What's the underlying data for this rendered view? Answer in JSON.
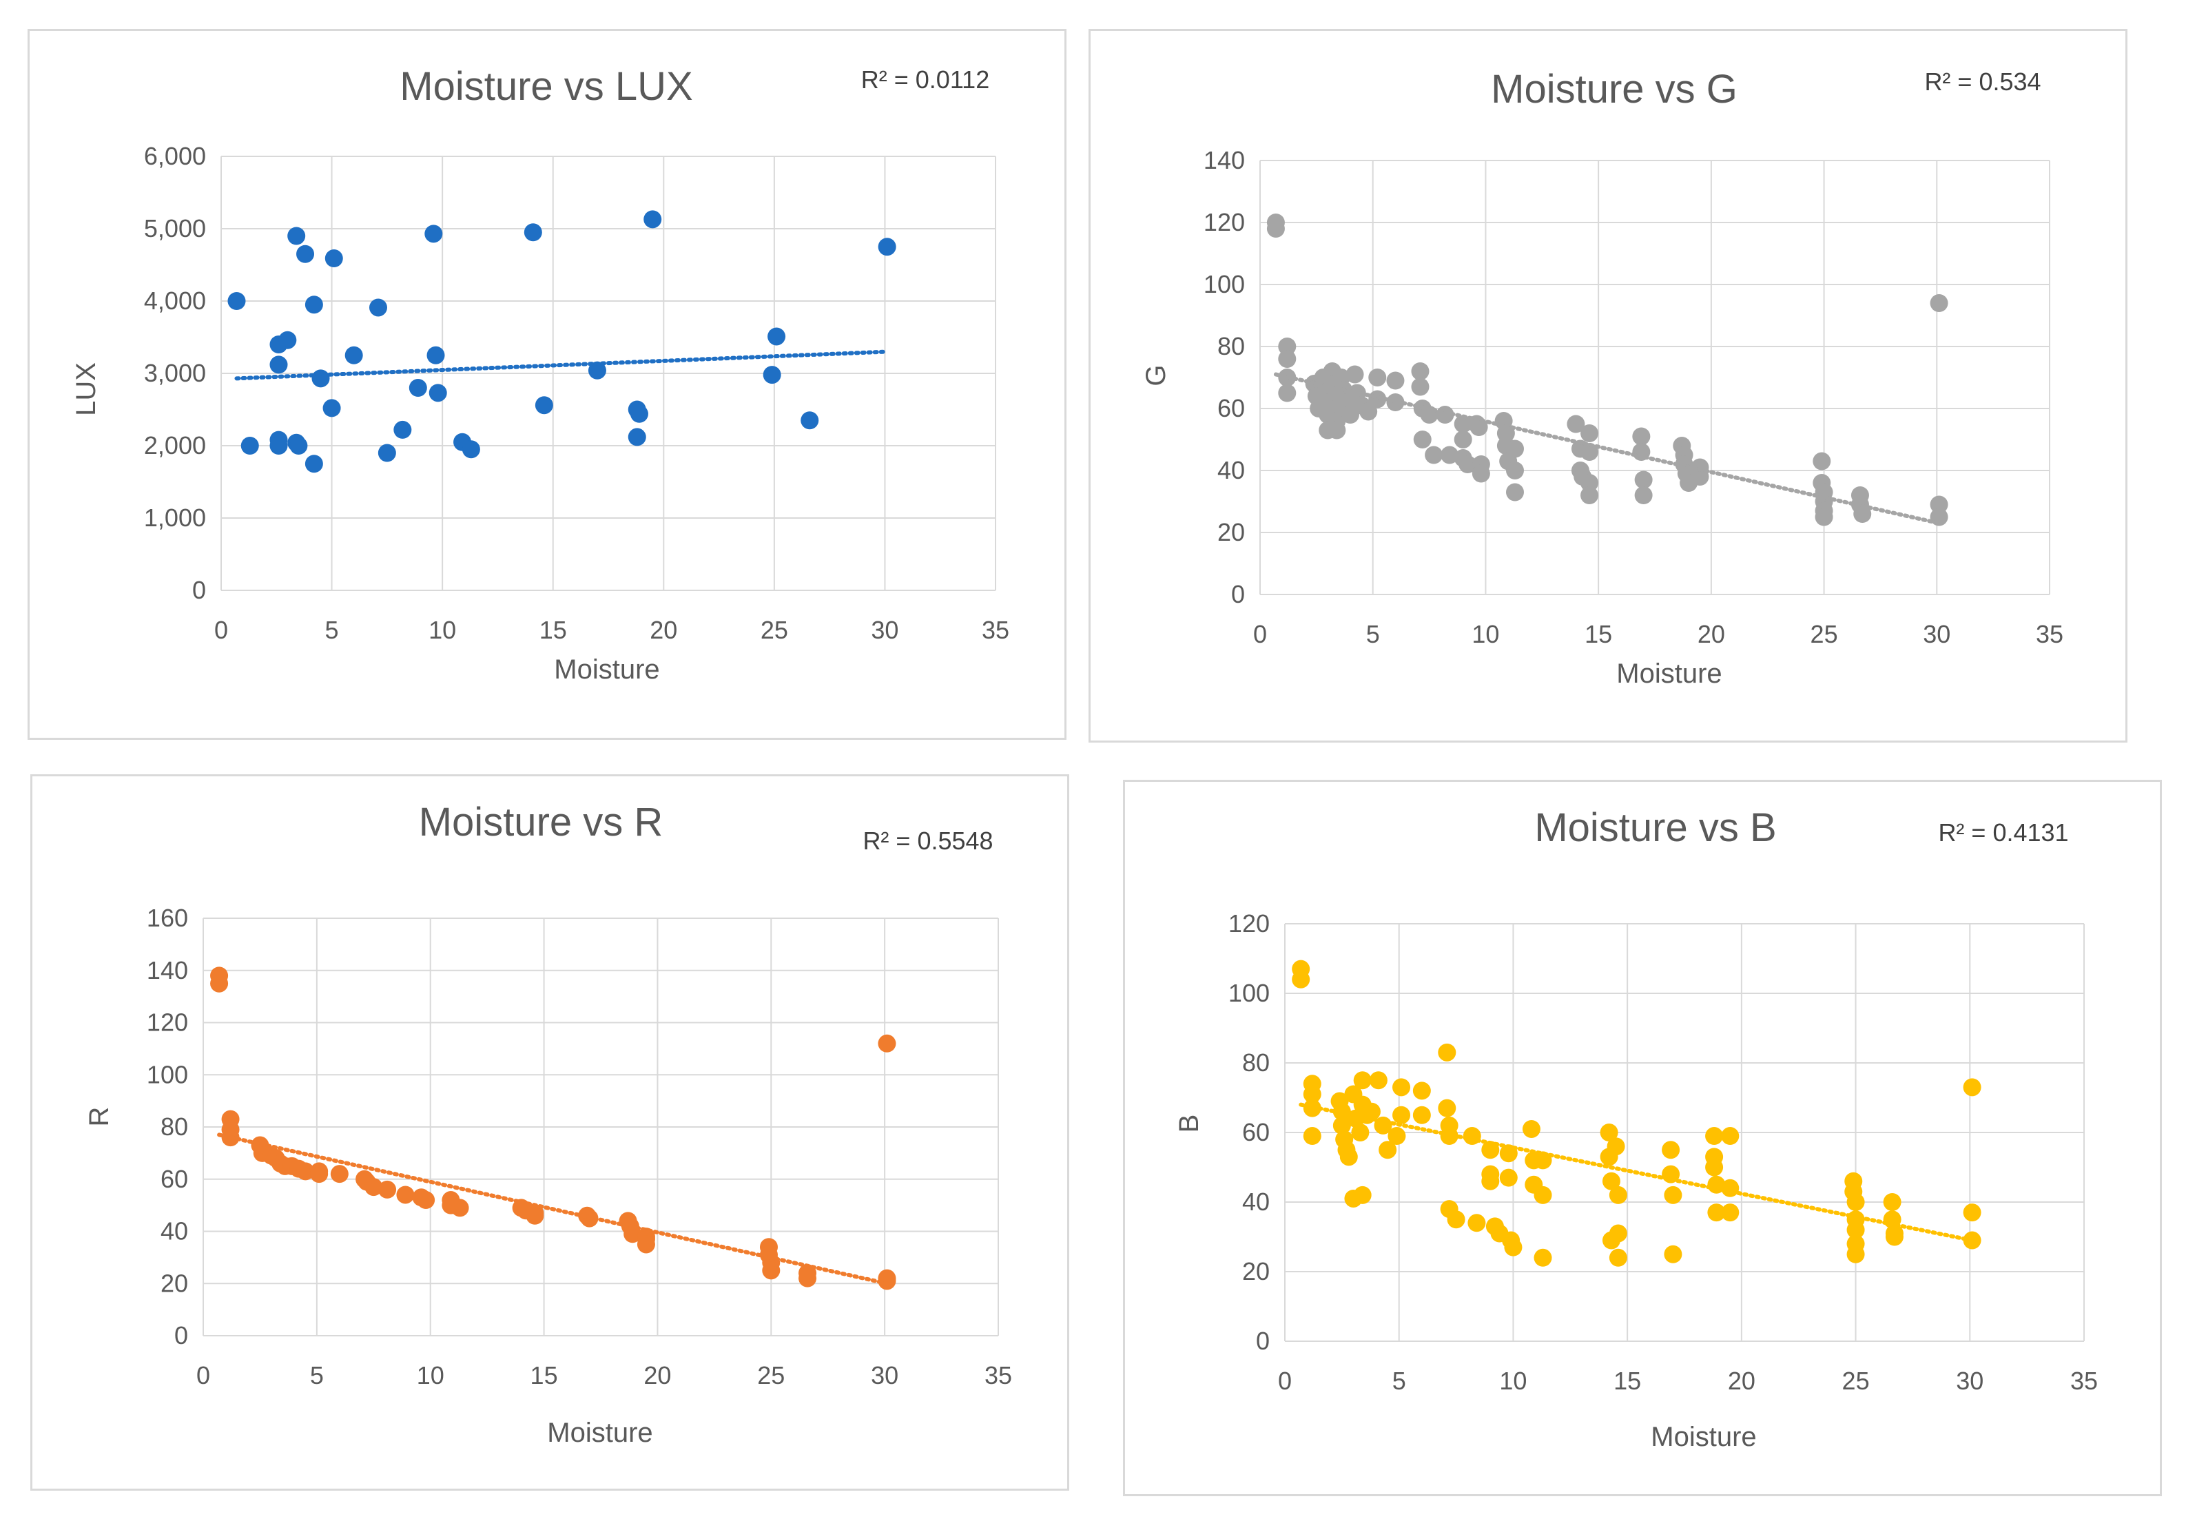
{
  "charts": [
    {
      "id": "lux",
      "type": "scatter",
      "title": "Moisture vs LUX",
      "r2": "R² = 0.0112",
      "xlabel": "Moisture",
      "ylabel": "LUX",
      "xlim": [
        0,
        35
      ],
      "ylim": [
        0,
        6000
      ],
      "xticks": [
        0,
        5,
        10,
        15,
        20,
        25,
        30,
        35
      ],
      "yticks": [
        0,
        1000,
        2000,
        3000,
        4000,
        5000,
        6000
      ],
      "ytick_labels": [
        "0",
        "1,000",
        "2,000",
        "3,000",
        "4,000",
        "5,000",
        "6,000"
      ],
      "color": "#1f6fc4",
      "trend": [
        [
          0.7,
          2930
        ],
        [
          30.1,
          3300
        ]
      ],
      "points": [
        [
          0.7,
          4000
        ],
        [
          1.3,
          2000
        ],
        [
          2.6,
          3400
        ],
        [
          2.6,
          3120
        ],
        [
          2.6,
          2080
        ],
        [
          2.6,
          2000
        ],
        [
          3,
          3460
        ],
        [
          3.4,
          4900
        ],
        [
          3.4,
          2040
        ],
        [
          3.5,
          2000
        ],
        [
          3.8,
          4650
        ],
        [
          4.2,
          3950
        ],
        [
          4.2,
          1750
        ],
        [
          4.5,
          2930
        ],
        [
          5,
          2520
        ],
        [
          5.1,
          4590
        ],
        [
          6,
          3250
        ],
        [
          7.1,
          3910
        ],
        [
          7.5,
          1900
        ],
        [
          8.2,
          2220
        ],
        [
          8.9,
          2800
        ],
        [
          9.6,
          4930
        ],
        [
          9.7,
          3250
        ],
        [
          9.8,
          2730
        ],
        [
          10.9,
          2050
        ],
        [
          11.3,
          1950
        ],
        [
          14.1,
          4950
        ],
        [
          14.6,
          2560
        ],
        [
          17,
          3040
        ],
        [
          18.8,
          2500
        ],
        [
          18.9,
          2440
        ],
        [
          18.8,
          2120
        ],
        [
          19.5,
          5130
        ],
        [
          24.9,
          2980
        ],
        [
          25.1,
          3510
        ],
        [
          26.6,
          2350
        ],
        [
          30.1,
          4750
        ]
      ]
    },
    {
      "id": "g",
      "type": "scatter",
      "title": "Moisture vs G",
      "r2": "R² = 0.534",
      "xlabel": "Moisture",
      "ylabel": "G",
      "xlim": [
        0,
        35
      ],
      "ylim": [
        0,
        140
      ],
      "xticks": [
        0,
        5,
        10,
        15,
        20,
        25,
        30,
        35
      ],
      "yticks": [
        0,
        20,
        40,
        60,
        80,
        100,
        120,
        140
      ],
      "ytick_labels": [
        "0",
        "20",
        "40",
        "60",
        "80",
        "100",
        "120",
        "140"
      ],
      "color": "#a5a5a5",
      "trend": [
        [
          0.7,
          71
        ],
        [
          30.1,
          23
        ]
      ],
      "points": [
        [
          0.7,
          120
        ],
        [
          0.7,
          118
        ],
        [
          1.2,
          80
        ],
        [
          1.2,
          76
        ],
        [
          1.2,
          70
        ],
        [
          1.2,
          65
        ],
        [
          2.4,
          68
        ],
        [
          2.5,
          64
        ],
        [
          2.6,
          60
        ],
        [
          2.8,
          70
        ],
        [
          3,
          66
        ],
        [
          3,
          62
        ],
        [
          3,
          58
        ],
        [
          3,
          53
        ],
        [
          3.2,
          72
        ],
        [
          3.3,
          68
        ],
        [
          3.4,
          64
        ],
        [
          3.4,
          60
        ],
        [
          3.4,
          56
        ],
        [
          3.4,
          53
        ],
        [
          3.6,
          70
        ],
        [
          3.7,
          66
        ],
        [
          3.8,
          62
        ],
        [
          4,
          58
        ],
        [
          4.2,
          71
        ],
        [
          4.3,
          65
        ],
        [
          4.5,
          61
        ],
        [
          4.8,
          59
        ],
        [
          5.2,
          70
        ],
        [
          5.2,
          63
        ],
        [
          6,
          69
        ],
        [
          6,
          62
        ],
        [
          7.1,
          72
        ],
        [
          7.1,
          67
        ],
        [
          7.2,
          60
        ],
        [
          7.2,
          50
        ],
        [
          7.5,
          58
        ],
        [
          7.7,
          45
        ],
        [
          8.2,
          58
        ],
        [
          8.4,
          45
        ],
        [
          9,
          55
        ],
        [
          9,
          50
        ],
        [
          9,
          44
        ],
        [
          9.2,
          42
        ],
        [
          9.6,
          55
        ],
        [
          9.7,
          54
        ],
        [
          9.8,
          42
        ],
        [
          9.8,
          39
        ],
        [
          10.8,
          56
        ],
        [
          10.9,
          52
        ],
        [
          10.9,
          48
        ],
        [
          11,
          43
        ],
        [
          11.3,
          47
        ],
        [
          11.3,
          40
        ],
        [
          11.3,
          33
        ],
        [
          14,
          55
        ],
        [
          14.2,
          47
        ],
        [
          14.2,
          40
        ],
        [
          14.3,
          38
        ],
        [
          14.6,
          52
        ],
        [
          14.6,
          46
        ],
        [
          14.6,
          36
        ],
        [
          14.6,
          32
        ],
        [
          16.9,
          51
        ],
        [
          16.9,
          46
        ],
        [
          17,
          37
        ],
        [
          17,
          32
        ],
        [
          18.7,
          48
        ],
        [
          18.8,
          45
        ],
        [
          18.8,
          42
        ],
        [
          18.9,
          39
        ],
        [
          19,
          36
        ],
        [
          19.5,
          41
        ],
        [
          19.5,
          38
        ],
        [
          24.9,
          43
        ],
        [
          24.9,
          36
        ],
        [
          25,
          33
        ],
        [
          25,
          30
        ],
        [
          25,
          27
        ],
        [
          25,
          25
        ],
        [
          26.6,
          32
        ],
        [
          26.6,
          29
        ],
        [
          26.7,
          26
        ],
        [
          30.1,
          94
        ],
        [
          30.1,
          29
        ],
        [
          30.1,
          25
        ]
      ]
    },
    {
      "id": "r",
      "type": "scatter",
      "title": "Moisture vs R",
      "r2": "R² = 0.5548",
      "xlabel": "Moisture",
      "ylabel": "R",
      "xlim": [
        0,
        35
      ],
      "ylim": [
        0,
        160
      ],
      "xticks": [
        0,
        5,
        10,
        15,
        20,
        25,
        30,
        35
      ],
      "yticks": [
        0,
        20,
        40,
        60,
        80,
        100,
        120,
        140,
        160
      ],
      "ytick_labels": [
        "0",
        "20",
        "40",
        "60",
        "80",
        "100",
        "120",
        "140",
        "160"
      ],
      "color": "#f07c2d",
      "trend": [
        [
          0.7,
          77
        ],
        [
          30.1,
          20
        ]
      ],
      "points": [
        [
          0.7,
          138
        ],
        [
          0.7,
          135
        ],
        [
          1.2,
          83
        ],
        [
          1.2,
          79
        ],
        [
          1.2,
          76
        ],
        [
          2.5,
          73
        ],
        [
          2.6,
          70
        ],
        [
          3,
          69
        ],
        [
          3.2,
          68
        ],
        [
          3.4,
          66
        ],
        [
          3.6,
          65
        ],
        [
          3.9,
          65
        ],
        [
          4.2,
          64
        ],
        [
          4.5,
          63
        ],
        [
          5.1,
          63
        ],
        [
          5.1,
          62
        ],
        [
          6,
          62
        ],
        [
          7.1,
          60
        ],
        [
          7.2,
          59
        ],
        [
          7.5,
          57
        ],
        [
          8.1,
          56
        ],
        [
          8.9,
          54
        ],
        [
          9.6,
          53
        ],
        [
          9.8,
          52
        ],
        [
          10.9,
          50
        ],
        [
          10.9,
          52
        ],
        [
          11.3,
          49
        ],
        [
          14,
          49
        ],
        [
          14.2,
          48
        ],
        [
          14.6,
          47
        ],
        [
          14.6,
          46
        ],
        [
          16.9,
          46
        ],
        [
          17,
          45
        ],
        [
          18.7,
          44
        ],
        [
          18.8,
          42
        ],
        [
          18.9,
          39
        ],
        [
          19.5,
          38
        ],
        [
          19.5,
          37
        ],
        [
          19.5,
          35
        ],
        [
          24.9,
          34
        ],
        [
          24.9,
          31
        ],
        [
          25,
          28
        ],
        [
          25,
          25
        ],
        [
          26.6,
          24
        ],
        [
          26.6,
          22
        ],
        [
          30.1,
          112
        ],
        [
          30.1,
          22
        ],
        [
          30.1,
          21
        ]
      ]
    },
    {
      "id": "b",
      "type": "scatter",
      "title": "Moisture vs B",
      "r2": "R² = 0.4131",
      "xlabel": "Moisture",
      "ylabel": "B",
      "xlim": [
        0,
        35
      ],
      "ylim": [
        0,
        120
      ],
      "xticks": [
        0,
        5,
        10,
        15,
        20,
        25,
        30,
        35
      ],
      "yticks": [
        0,
        20,
        40,
        60,
        80,
        100,
        120
      ],
      "ytick_labels": [
        "0",
        "20",
        "40",
        "60",
        "80",
        "100",
        "120"
      ],
      "color": "#ffc000",
      "trend": [
        [
          0.7,
          68
        ],
        [
          30.1,
          29
        ]
      ],
      "points": [
        [
          0.7,
          107
        ],
        [
          0.7,
          104
        ],
        [
          1.2,
          74
        ],
        [
          1.2,
          71
        ],
        [
          1.2,
          67
        ],
        [
          1.2,
          59
        ],
        [
          2.4,
          69
        ],
        [
          2.5,
          66
        ],
        [
          2.5,
          62
        ],
        [
          2.6,
          58
        ],
        [
          2.7,
          55
        ],
        [
          2.8,
          53
        ],
        [
          3,
          41
        ],
        [
          3,
          71
        ],
        [
          3.1,
          64
        ],
        [
          3.3,
          60
        ],
        [
          3.4,
          42
        ],
        [
          3.4,
          75
        ],
        [
          3.4,
          68
        ],
        [
          3.6,
          65
        ],
        [
          3.8,
          66
        ],
        [
          4.1,
          75
        ],
        [
          4.3,
          62
        ],
        [
          4.5,
          55
        ],
        [
          4.9,
          59
        ],
        [
          5.1,
          73
        ],
        [
          5.1,
          65
        ],
        [
          6,
          72
        ],
        [
          6,
          65
        ],
        [
          7.1,
          83
        ],
        [
          7.1,
          67
        ],
        [
          7.2,
          62
        ],
        [
          7.2,
          59
        ],
        [
          7.2,
          38
        ],
        [
          7.5,
          35
        ],
        [
          8.2,
          59
        ],
        [
          8.4,
          34
        ],
        [
          9,
          55
        ],
        [
          9,
          48
        ],
        [
          9,
          46
        ],
        [
          9.2,
          33
        ],
        [
          9.4,
          31
        ],
        [
          9.8,
          54
        ],
        [
          9.8,
          47
        ],
        [
          9.9,
          29
        ],
        [
          10,
          27
        ],
        [
          10.8,
          61
        ],
        [
          10.9,
          52
        ],
        [
          10.9,
          45
        ],
        [
          11.3,
          52
        ],
        [
          11.3,
          42
        ],
        [
          11.3,
          24
        ],
        [
          14.2,
          60
        ],
        [
          14.2,
          53
        ],
        [
          14.3,
          46
        ],
        [
          14.3,
          29
        ],
        [
          14.5,
          56
        ],
        [
          14.6,
          42
        ],
        [
          14.6,
          31
        ],
        [
          14.6,
          24
        ],
        [
          16.9,
          55
        ],
        [
          16.9,
          48
        ],
        [
          17,
          42
        ],
        [
          17,
          25
        ],
        [
          18.8,
          59
        ],
        [
          18.8,
          53
        ],
        [
          18.8,
          50
        ],
        [
          18.9,
          45
        ],
        [
          18.9,
          37
        ],
        [
          19.5,
          59
        ],
        [
          19.5,
          44
        ],
        [
          19.5,
          37
        ],
        [
          24.9,
          46
        ],
        [
          24.9,
          43
        ],
        [
          25,
          40
        ],
        [
          25,
          35
        ],
        [
          25,
          32
        ],
        [
          25,
          28
        ],
        [
          25,
          25
        ],
        [
          26.6,
          40
        ],
        [
          26.6,
          35
        ],
        [
          26.7,
          31
        ],
        [
          26.7,
          30
        ],
        [
          30.1,
          73
        ],
        [
          30.1,
          37
        ],
        [
          30.1,
          29
        ]
      ]
    }
  ]
}
